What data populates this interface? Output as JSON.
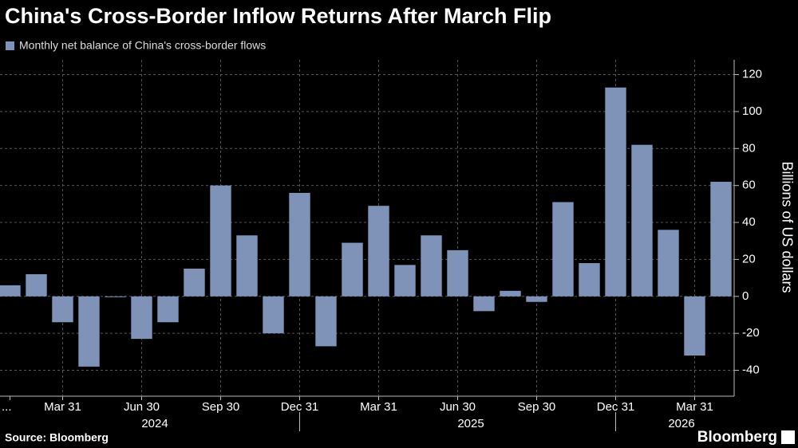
{
  "chart_data": {
    "type": "bar",
    "title": "China's Cross-Border Inflow Returns After March Flip",
    "legend": "Monthly net balance of China's cross-border flows",
    "y_label": "Billions of US dollars",
    "source": "Source: Bloomberg",
    "brand": "Bloomberg",
    "color": "#7f93b8",
    "categories": [
      "...",
      null,
      "Mar 31",
      null,
      null,
      "Jun 30",
      null,
      null,
      "Sep 30",
      null,
      null,
      "Dec 31",
      null,
      null,
      "Mar 31",
      null,
      null,
      "Jun 30",
      null,
      null,
      "Sep 30",
      null,
      null,
      "Dec 31",
      null,
      null,
      "Mar 31",
      null
    ],
    "years": [
      "2024",
      "2025",
      "2026"
    ],
    "values": [
      6,
      12,
      -14,
      -38,
      0,
      -23,
      -14,
      15,
      60,
      33,
      -20,
      56,
      -27,
      29,
      49,
      17,
      33,
      25,
      -8,
      3,
      -3,
      51,
      18,
      113,
      82,
      36,
      -32,
      62
    ],
    "ylim": [
      -54,
      128
    ],
    "yticks": [
      -40,
      -20,
      0,
      20,
      40,
      60,
      80,
      100,
      120
    ],
    "grid": true
  }
}
